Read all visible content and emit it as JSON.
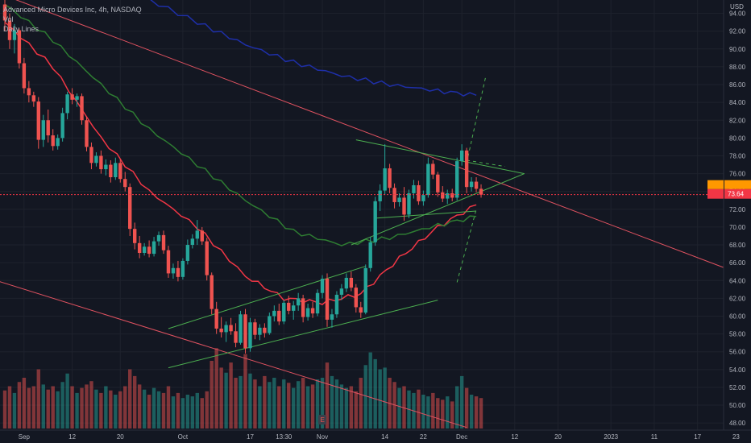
{
  "header": {
    "symbol_line": "Advanced Micro Devices Inc, 4h, NASDAQ",
    "indicator_1": "Vol",
    "indicator_2": "Daily Lines"
  },
  "colors": {
    "background": "#131722",
    "up": "#26a69a",
    "down": "#ef5350",
    "trendline_red": "#e05260",
    "channel_green": "#4caf50",
    "ma_red": "#f23645",
    "ma_green": "#2e7d32",
    "ma_blue": "#1e2fa8",
    "last_price_bg": "#f23645",
    "secondary_tag_bg": "#ff9800"
  },
  "chart_data": {
    "type": "candlestick",
    "y_axis": {
      "unit_label": "USD",
      "ylim": [
        47.2,
        95.5
      ],
      "ticks": [
        "48.00",
        "50.00",
        "52.00",
        "54.00",
        "56.00",
        "58.00",
        "60.00",
        "62.00",
        "64.00",
        "66.00",
        "68.00",
        "70.00",
        "72.00",
        "74.00",
        "76.00",
        "78.00",
        "80.00",
        "82.00",
        "84.00",
        "86.00",
        "88.00",
        "90.00",
        "92.00",
        "94.00"
      ]
    },
    "x_axis": {
      "ticks": [
        {
          "label": "Sep",
          "i": 4
        },
        {
          "label": "12",
          "i": 14
        },
        {
          "label": "20",
          "i": 24
        },
        {
          "label": "Oct",
          "i": 37
        },
        {
          "label": "17",
          "i": 51
        },
        {
          "label": "13:30",
          "i": 58
        },
        {
          "label": "Nov",
          "i": 66
        },
        {
          "label": "14",
          "i": 79
        },
        {
          "label": "22",
          "i": 87
        },
        {
          "label": "Dec",
          "i": 95
        },
        {
          "label": "12",
          "i": 106
        },
        {
          "label": "20",
          "i": 115
        },
        {
          "label": "2023",
          "i": 126
        },
        {
          "label": "11",
          "i": 135
        },
        {
          "label": "17",
          "i": 144
        },
        {
          "label": "23",
          "i": 152
        }
      ]
    },
    "last_price": "73.64",
    "candles": [
      [
        95.0,
        95.6,
        92.0,
        93.2
      ],
      [
        93.2,
        94.0,
        90.0,
        91.0
      ],
      [
        91.0,
        92.8,
        89.5,
        92.1
      ],
      [
        92.1,
        92.3,
        87.8,
        88.4
      ],
      [
        88.4,
        89.0,
        85.0,
        85.6
      ],
      [
        85.6,
        86.4,
        84.0,
        84.8
      ],
      [
        84.8,
        85.2,
        83.5,
        84.1
      ],
      [
        84.1,
        84.6,
        78.8,
        79.8
      ],
      [
        79.8,
        82.6,
        79.0,
        82.0
      ],
      [
        82.0,
        83.2,
        79.5,
        80.3
      ],
      [
        80.3,
        81.0,
        78.6,
        79.1
      ],
      [
        79.1,
        80.4,
        78.7,
        80.0
      ],
      [
        80.0,
        83.4,
        79.6,
        82.8
      ],
      [
        82.8,
        85.2,
        82.1,
        84.9
      ],
      [
        84.9,
        85.6,
        83.8,
        84.3
      ],
      [
        84.3,
        85.0,
        83.5,
        84.7
      ],
      [
        84.7,
        85.0,
        81.5,
        82.0
      ],
      [
        82.0,
        82.4,
        78.5,
        79.0
      ],
      [
        79.0,
        79.5,
        76.5,
        77.2
      ],
      [
        77.2,
        78.4,
        76.8,
        78.0
      ],
      [
        78.0,
        78.6,
        76.0,
        76.5
      ],
      [
        76.5,
        77.6,
        75.8,
        77.0
      ],
      [
        77.0,
        77.5,
        75.0,
        75.6
      ],
      [
        75.6,
        77.8,
        75.3,
        77.2
      ],
      [
        77.2,
        77.6,
        75.0,
        75.4
      ],
      [
        75.4,
        76.2,
        74.0,
        74.5
      ],
      [
        74.5,
        74.9,
        69.0,
        69.8
      ],
      [
        69.8,
        70.5,
        67.5,
        68.2
      ],
      [
        68.2,
        69.0,
        66.5,
        67.1
      ],
      [
        67.1,
        68.2,
        66.8,
        67.8
      ],
      [
        67.8,
        68.5,
        66.6,
        67.0
      ],
      [
        67.0,
        68.9,
        66.7,
        68.4
      ],
      [
        68.4,
        69.5,
        67.9,
        69.1
      ],
      [
        69.1,
        69.6,
        67.0,
        67.4
      ],
      [
        67.4,
        67.9,
        64.3,
        64.8
      ],
      [
        64.8,
        65.9,
        64.2,
        65.4
      ],
      [
        65.4,
        66.2,
        63.9,
        64.4
      ],
      [
        64.4,
        66.5,
        64.1,
        66.2
      ],
      [
        66.2,
        68.6,
        65.8,
        68.0
      ],
      [
        68.0,
        69.2,
        67.6,
        68.7
      ],
      [
        68.7,
        70.8,
        68.0,
        69.6
      ],
      [
        69.6,
        70.0,
        68.0,
        68.4
      ],
      [
        68.4,
        68.8,
        64.0,
        64.6
      ],
      [
        64.6,
        64.9,
        60.2,
        60.8
      ],
      [
        60.8,
        61.6,
        58.0,
        58.6
      ],
      [
        58.6,
        59.9,
        57.6,
        58.2
      ],
      [
        58.2,
        59.4,
        57.1,
        59.0
      ],
      [
        59.0,
        59.8,
        57.9,
        58.3
      ],
      [
        58.3,
        59.2,
        56.5,
        57.0
      ],
      [
        57.0,
        60.6,
        56.8,
        60.2
      ],
      [
        60.2,
        60.8,
        55.8,
        56.4
      ],
      [
        56.4,
        59.8,
        56.0,
        59.3
      ],
      [
        59.3,
        59.7,
        57.4,
        57.9
      ],
      [
        57.9,
        59.1,
        57.3,
        58.7
      ],
      [
        58.7,
        59.2,
        57.6,
        58.1
      ],
      [
        58.1,
        60.4,
        57.9,
        60.0
      ],
      [
        60.0,
        61.2,
        59.4,
        60.6
      ],
      [
        60.6,
        61.4,
        59.0,
        59.4
      ],
      [
        59.4,
        61.8,
        59.1,
        61.5
      ],
      [
        61.5,
        62.3,
        60.2,
        60.6
      ],
      [
        60.6,
        61.7,
        59.6,
        61.2
      ],
      [
        61.2,
        62.6,
        60.6,
        62.0
      ],
      [
        62.0,
        62.4,
        59.3,
        59.9
      ],
      [
        59.9,
        61.4,
        59.5,
        60.9
      ],
      [
        60.9,
        61.6,
        59.8,
        60.3
      ],
      [
        60.3,
        63.0,
        60.0,
        62.6
      ],
      [
        62.6,
        64.6,
        62.0,
        64.2
      ],
      [
        64.2,
        64.8,
        58.8,
        59.6
      ],
      [
        59.6,
        60.8,
        58.7,
        60.2
      ],
      [
        60.2,
        62.8,
        59.8,
        62.4
      ],
      [
        62.4,
        63.6,
        61.8,
        63.1
      ],
      [
        63.1,
        64.8,
        62.7,
        64.3
      ],
      [
        64.3,
        65.0,
        62.8,
        63.2
      ],
      [
        63.2,
        63.6,
        60.4,
        61.0
      ],
      [
        61.0,
        61.6,
        59.8,
        60.4
      ],
      [
        60.4,
        65.8,
        60.2,
        65.4
      ],
      [
        65.4,
        68.9,
        65.0,
        68.3
      ],
      [
        68.3,
        73.4,
        67.9,
        72.9
      ],
      [
        72.9,
        74.8,
        71.8,
        74.1
      ],
      [
        74.1,
        79.3,
        73.6,
        76.6
      ],
      [
        76.6,
        77.1,
        73.8,
        74.4
      ],
      [
        74.4,
        74.9,
        72.1,
        72.8
      ],
      [
        72.8,
        73.8,
        72.3,
        73.3
      ],
      [
        73.3,
        74.5,
        70.7,
        71.4
      ],
      [
        71.4,
        74.2,
        71.0,
        73.8
      ],
      [
        73.8,
        75.3,
        73.2,
        74.7
      ],
      [
        74.7,
        75.2,
        72.5,
        72.9
      ],
      [
        72.9,
        74.1,
        72.4,
        73.6
      ],
      [
        73.6,
        77.8,
        73.3,
        77.1
      ],
      [
        77.1,
        77.5,
        75.4,
        75.9
      ],
      [
        75.9,
        76.2,
        73.4,
        73.9
      ],
      [
        73.9,
        74.6,
        72.8,
        73.2
      ],
      [
        73.2,
        74.2,
        72.6,
        73.8
      ],
      [
        73.8,
        74.3,
        72.9,
        73.3
      ],
      [
        73.3,
        77.8,
        73.0,
        77.4
      ],
      [
        77.4,
        79.3,
        76.9,
        78.6
      ],
      [
        78.6,
        78.9,
        73.8,
        74.5
      ],
      [
        74.5,
        75.6,
        74.0,
        75.1
      ],
      [
        75.1,
        75.6,
        73.9,
        74.3
      ],
      [
        74.3,
        74.8,
        73.3,
        73.64
      ]
    ],
    "volumes": [
      0.45,
      0.5,
      0.42,
      0.55,
      0.6,
      0.48,
      0.5,
      0.7,
      0.52,
      0.46,
      0.5,
      0.44,
      0.55,
      0.65,
      0.5,
      0.42,
      0.48,
      0.52,
      0.56,
      0.46,
      0.42,
      0.5,
      0.45,
      0.4,
      0.44,
      0.5,
      0.7,
      0.62,
      0.52,
      0.46,
      0.4,
      0.48,
      0.44,
      0.42,
      0.5,
      0.38,
      0.42,
      0.36,
      0.4,
      0.38,
      0.42,
      0.36,
      0.44,
      0.8,
      0.95,
      0.72,
      0.66,
      0.78,
      0.6,
      0.62,
      0.88,
      0.65,
      0.58,
      0.5,
      0.62,
      0.55,
      0.6,
      0.5,
      0.58,
      0.54,
      0.48,
      0.56,
      0.6,
      0.5,
      0.52,
      0.58,
      0.6,
      0.78,
      0.62,
      0.58,
      0.52,
      0.48,
      0.5,
      0.44,
      0.6,
      0.75,
      0.9,
      0.82,
      0.7,
      0.72,
      0.6,
      0.55,
      0.48,
      0.5,
      0.45,
      0.42,
      0.46,
      0.4,
      0.38,
      0.42,
      0.36,
      0.34,
      0.38,
      0.32,
      0.5,
      0.62,
      0.48,
      0.4,
      0.38,
      0.36
    ],
    "moving_averages": [
      {
        "color_key": "ma_red",
        "points": [
          [
            0,
            93.0
          ],
          [
            10,
            88.0
          ],
          [
            20,
            80.0
          ],
          [
            30,
            74.0
          ],
          [
            40,
            70.0
          ],
          [
            50,
            64.5
          ],
          [
            58,
            62.0
          ],
          [
            66,
            61.5
          ],
          [
            74,
            62.5
          ],
          [
            82,
            66.5
          ],
          [
            90,
            70.0
          ],
          [
            98,
            72.5
          ]
        ]
      },
      {
        "color_key": "ma_green",
        "points": [
          [
            0,
            95.0
          ],
          [
            10,
            91.0
          ],
          [
            20,
            86.0
          ],
          [
            30,
            81.0
          ],
          [
            40,
            77.0
          ],
          [
            50,
            73.0
          ],
          [
            60,
            69.5
          ],
          [
            70,
            68.0
          ],
          [
            80,
            68.8
          ],
          [
            90,
            70.2
          ],
          [
            98,
            71.2
          ]
        ]
      },
      {
        "color_key": "ma_blue",
        "points": [
          [
            28,
            96.0
          ],
          [
            40,
            93.0
          ],
          [
            50,
            90.5
          ],
          [
            60,
            88.5
          ],
          [
            70,
            87.0
          ],
          [
            80,
            86.0
          ],
          [
            90,
            85.3
          ],
          [
            98,
            84.8
          ]
        ]
      }
    ],
    "trendlines": [
      {
        "style": "solid",
        "color_key": "trendline_red",
        "from": [
          0,
          96.0
        ],
        "to": [
          159,
          63.5
        ]
      },
      {
        "style": "solid",
        "color_key": "trendline_red",
        "from": [
          -3,
          64.2
        ],
        "to": [
          96,
          47.5
        ]
      },
      {
        "style": "solid",
        "color_key": "channel_green",
        "from": [
          34,
          58.6
        ],
        "to": [
          75,
          65.6
        ]
      },
      {
        "style": "solid",
        "color_key": "channel_green",
        "from": [
          34,
          54.2
        ],
        "to": [
          90,
          61.8
        ]
      },
      {
        "style": "solid",
        "color_key": "channel_green",
        "from": [
          72,
          68.0
        ],
        "to": [
          108,
          76.0
        ]
      },
      {
        "style": "solid",
        "color_key": "channel_green",
        "from": [
          73,
          79.8
        ],
        "to": [
          108,
          76.0
        ]
      },
      {
        "style": "solid",
        "color_key": "channel_green",
        "from": [
          77,
          71.0
        ],
        "to": [
          98,
          71.8
        ]
      },
      {
        "style": "dashed",
        "color_key": "channel_green",
        "from": [
          96,
          77.2
        ],
        "to": [
          100,
          87.0
        ]
      },
      {
        "style": "dashed",
        "color_key": "channel_green",
        "from": [
          94,
          63.8
        ],
        "to": [
          98,
          72.0
        ]
      },
      {
        "style": "dashed",
        "color_key": "channel_green",
        "from": [
          96,
          77.5
        ],
        "to": [
          104,
          76.8
        ]
      }
    ]
  }
}
